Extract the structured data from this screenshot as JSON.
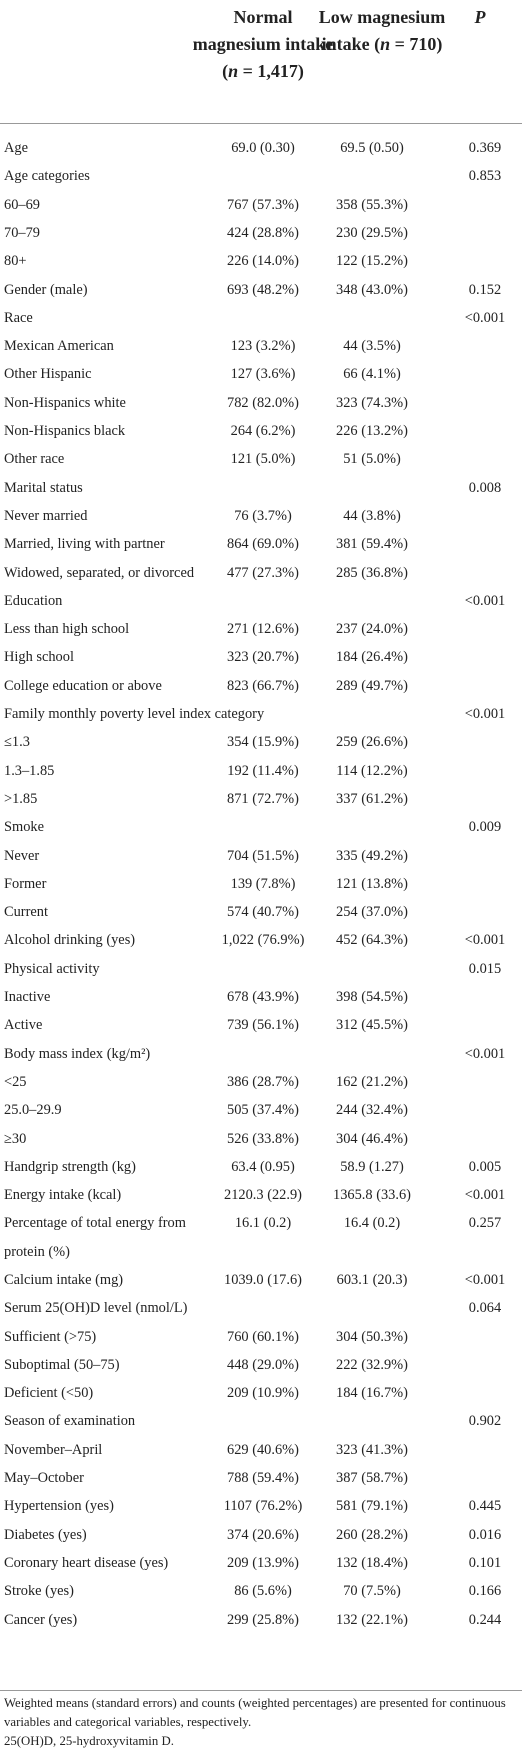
{
  "table": {
    "columns": [
      {
        "pre": "Normal magnesium intake (",
        "italic": "n",
        "post": " = 1,417)"
      },
      {
        "pre": "Low magnesium intake (",
        "italic": "n",
        "post": " = 710)"
      },
      {
        "italic": "P"
      }
    ],
    "rows": [
      [
        "Age",
        "69.0 (0.30)",
        "69.5 (0.50)",
        "0.369"
      ],
      [
        "Age categories",
        null,
        null,
        "0.853"
      ],
      [
        "60–69",
        "767 (57.3%)",
        "358 (55.3%)",
        null
      ],
      [
        "70–79",
        "424 (28.8%)",
        "230 (29.5%)",
        null
      ],
      [
        "80+",
        "226 (14.0%)",
        "122 (15.2%)",
        null
      ],
      [
        "Gender (male)",
        "693 (48.2%)",
        "348 (43.0%)",
        "0.152"
      ],
      [
        "Race",
        null,
        null,
        "<0.001"
      ],
      [
        "Mexican American",
        "123 (3.2%)",
        "44 (3.5%)",
        null
      ],
      [
        "Other Hispanic",
        "127 (3.6%)",
        "66 (4.1%)",
        null
      ],
      [
        "Non-Hispanics white",
        "782 (82.0%)",
        "323 (74.3%)",
        null
      ],
      [
        "Non-Hispanics black",
        "264 (6.2%)",
        "226 (13.2%)",
        null
      ],
      [
        "Other race",
        "121 (5.0%)",
        "51 (5.0%)",
        null
      ],
      [
        "Marital status",
        null,
        null,
        "0.008"
      ],
      [
        "Never married",
        "76 (3.7%)",
        "44 (3.8%)",
        null
      ],
      [
        "Married, living with partner",
        "864 (69.0%)",
        "381 (59.4%)",
        null
      ],
      [
        "Widowed, separated, or divorced",
        "477 (27.3%)",
        "285 (36.8%)",
        null
      ],
      [
        "Education",
        null,
        null,
        "<0.001"
      ],
      [
        "Less than high school",
        "271 (12.6%)",
        "237 (24.0%)",
        null
      ],
      [
        "High school",
        "323 (20.7%)",
        "184 (26.4%)",
        null
      ],
      [
        "College education or above",
        "823 (66.7%)",
        "289 (49.7%)",
        null
      ],
      [
        "Family monthly poverty level index category",
        null,
        null,
        "<0.001"
      ],
      [
        "≤1.3",
        "354 (15.9%)",
        "259 (26.6%)",
        null
      ],
      [
        "1.3–1.85",
        "192 (11.4%)",
        "114 (12.2%)",
        null
      ],
      [
        ">1.85",
        "871 (72.7%)",
        "337 (61.2%)",
        null
      ],
      [
        "Smoke",
        null,
        null,
        "0.009"
      ],
      [
        "Never",
        "704 (51.5%)",
        "335 (49.2%)",
        null
      ],
      [
        "Former",
        "139 (7.8%)",
        "121 (13.8%)",
        null
      ],
      [
        "Current",
        "574 (40.7%)",
        "254 (37.0%)",
        null
      ],
      [
        "Alcohol drinking (yes)",
        "1,022 (76.9%)",
        "452 (64.3%)",
        "<0.001"
      ],
      [
        "Physical activity",
        null,
        null,
        "0.015"
      ],
      [
        "Inactive",
        "678 (43.9%)",
        "398 (54.5%)",
        null
      ],
      [
        "Active",
        "739 (56.1%)",
        "312 (45.5%)",
        null
      ],
      [
        "Body mass index (kg/m²)",
        null,
        null,
        "<0.001"
      ],
      [
        "<25",
        "386 (28.7%)",
        "162 (21.2%)",
        null
      ],
      [
        "25.0–29.9",
        "505 (37.4%)",
        "244 (32.4%)",
        null
      ],
      [
        "≥30",
        "526 (33.8%)",
        "304 (46.4%)",
        null
      ],
      [
        "Handgrip strength (kg)",
        "63.4 (0.95)",
        "58.9 (1.27)",
        "0.005"
      ],
      [
        "Energy intake (kcal)",
        "2120.3 (22.9)",
        "1365.8 (33.6)",
        "<0.001"
      ],
      [
        "Percentage of total energy from protein (%)",
        "16.1 (0.2)",
        "16.4 (0.2)",
        "0.257"
      ],
      [
        "Calcium intake (mg)",
        "1039.0 (17.6)",
        "603.1 (20.3)",
        "<0.001"
      ],
      [
        "Serum 25(OH)D level (nmol/L)",
        null,
        null,
        "0.064"
      ],
      [
        "Sufficient (>75)",
        "760 (60.1%)",
        "304 (50.3%)",
        null
      ],
      [
        "Suboptimal (50–75)",
        "448 (29.0%)",
        "222 (32.9%)",
        null
      ],
      [
        "Deficient (<50)",
        "209 (10.9%)",
        "184 (16.7%)",
        null
      ],
      [
        "Season of examination",
        null,
        null,
        "0.902"
      ],
      [
        "November–April",
        "629 (40.6%)",
        "323 (41.3%)",
        null
      ],
      [
        "May–October",
        "788 (59.4%)",
        "387 (58.7%)",
        null
      ],
      [
        "Hypertension (yes)",
        "1107 (76.2%)",
        "581 (79.1%)",
        "0.445"
      ],
      [
        "Diabetes (yes)",
        "374 (20.6%)",
        "260 (28.2%)",
        "0.016"
      ],
      [
        "Coronary heart disease (yes)",
        "209 (13.9%)",
        "132 (18.4%)",
        "0.101"
      ],
      [
        "Stroke (yes)",
        "86 (5.6%)",
        "70 (7.5%)",
        "0.166"
      ],
      [
        "Cancer (yes)",
        "299 (25.8%)",
        "132 (22.1%)",
        "0.244"
      ]
    ],
    "footnotes": [
      "Weighted means (standard errors) and counts (weighted percentages) are presented for continuous variables and categorical variables, respectively.",
      "25(OH)D, 25-hydroxyvitamin D."
    ]
  }
}
